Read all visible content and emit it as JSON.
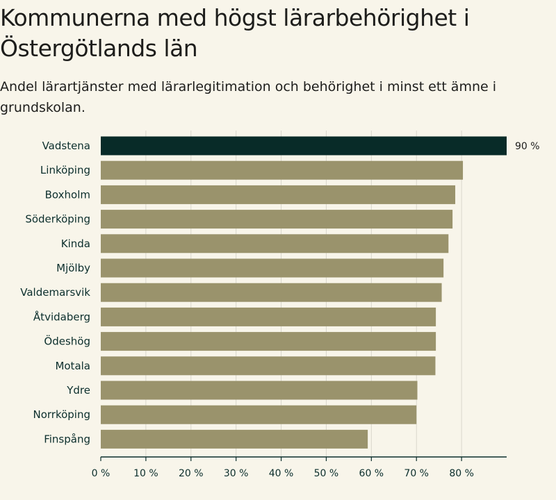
{
  "title": "Kommunerna med högst lärarbehörighet i Östergötlands län",
  "subtitle": "Andel lärartjänster med lärarlegitimation och behörighet i minst ett ämne i grundskolan.",
  "colors": {
    "background": "#f8f5ea",
    "highlight_bar": "#082b28",
    "bar": "#9a936c",
    "grid": "#d9d7cc",
    "axis": "#0b2e2c"
  },
  "chart_data": {
    "type": "bar",
    "orientation": "horizontal",
    "title": "Kommunerna med högst lärarbehörighet i Östergötlands län",
    "subtitle": "Andel lärartjänster med lärarlegitimation och behörighet i minst ett ämne i grundskolan.",
    "categories": [
      "Vadstena",
      "Linköping",
      "Boxholm",
      "Söderköping",
      "Kinda",
      "Mjölby",
      "Valdemarsvik",
      "Åtvidaberg",
      "Ödeshög",
      "Motala",
      "Ydre",
      "Norrköping",
      "Finspång"
    ],
    "values": [
      90,
      80.3,
      78.6,
      78.0,
      77.1,
      76.0,
      75.6,
      74.3,
      74.3,
      74.2,
      70.2,
      70.0,
      59.2
    ],
    "highlight_index": 0,
    "data_labels": [
      "90 %",
      "",
      "",
      "",
      "",
      "",
      "",
      "",
      "",
      "",
      "",
      "",
      ""
    ],
    "xlim": [
      0,
      90
    ],
    "xticks": [
      0,
      10,
      20,
      30,
      40,
      50,
      60,
      70,
      80
    ],
    "xtick_labels": [
      "0 %",
      "10 %",
      "20 %",
      "30 %",
      "40 %",
      "50 %",
      "60 %",
      "70 %",
      "80 %"
    ],
    "xlabel": "",
    "ylabel": "",
    "grid": true
  }
}
